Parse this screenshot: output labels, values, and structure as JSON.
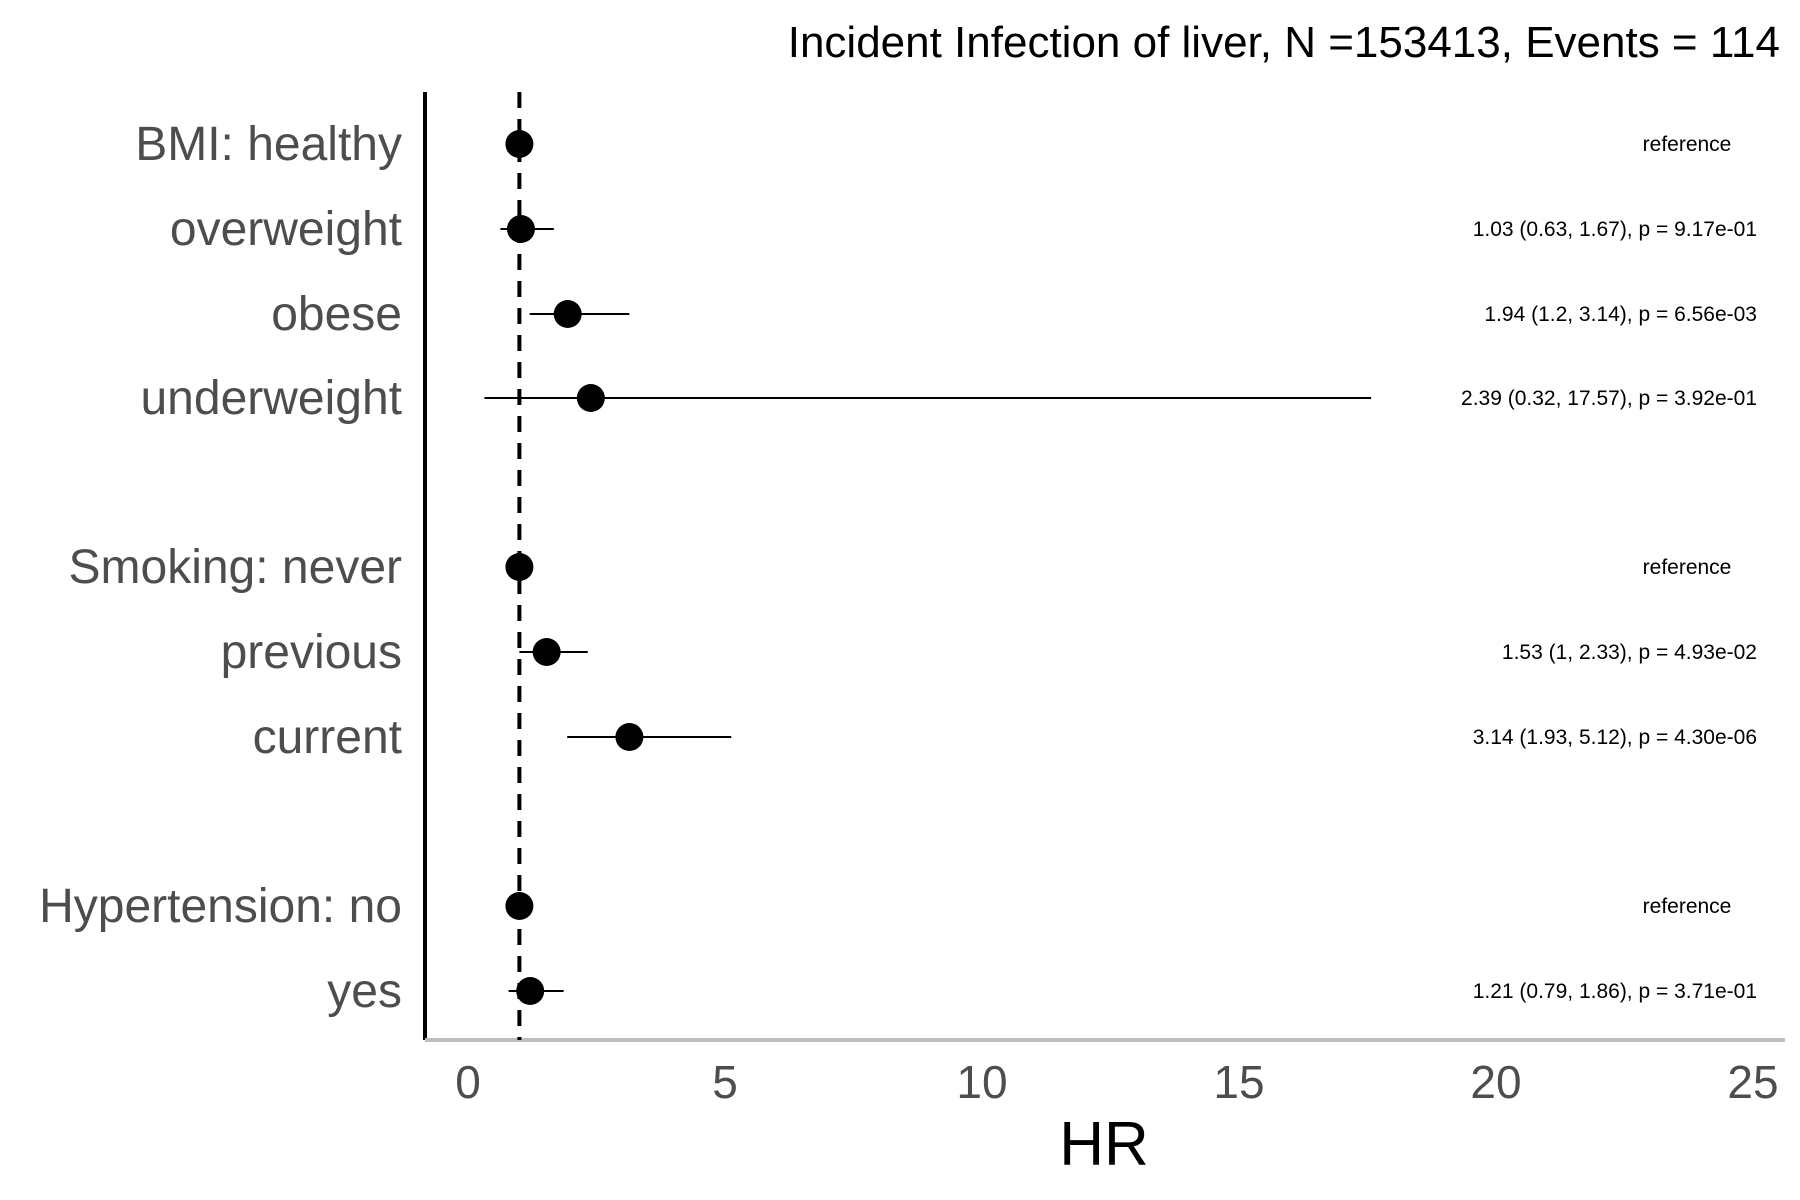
{
  "chart_data": {
    "type": "forest",
    "title": "Incident Infection of liver, N =153413, Events = 114",
    "xlabel": "HR",
    "ylabel": "",
    "xlim": [
      -0.8,
      25.5
    ],
    "x_ticks": [
      0,
      5,
      10,
      15,
      20,
      25
    ],
    "reference_line": 1,
    "grid": false,
    "rows": [
      {
        "label": "BMI: healthy",
        "hr": 1,
        "lower": null,
        "upper": null,
        "annotation": "reference"
      },
      {
        "label": "overweight",
        "hr": 1.03,
        "lower": 0.63,
        "upper": 1.67,
        "annotation": "1.03 (0.63, 1.67), p = 9.17e-01"
      },
      {
        "label": "obese",
        "hr": 1.94,
        "lower": 1.2,
        "upper": 3.14,
        "annotation": "1.94 (1.2, 3.14), p = 6.56e-03"
      },
      {
        "label": "underweight",
        "hr": 2.39,
        "lower": 0.32,
        "upper": 17.57,
        "annotation": "2.39 (0.32, 17.57), p = 3.92e-01"
      },
      {
        "label": "Smoking: never",
        "hr": 1,
        "lower": null,
        "upper": null,
        "annotation": "reference"
      },
      {
        "label": "previous",
        "hr": 1.53,
        "lower": 1,
        "upper": 2.33,
        "annotation": "1.53 (1, 2.33), p = 4.93e-02"
      },
      {
        "label": "current",
        "hr": 3.14,
        "lower": 1.93,
        "upper": 5.12,
        "annotation": "3.14 (1.93, 5.12), p = 4.30e-06"
      },
      {
        "label": "Hypertension: no",
        "hr": 1,
        "lower": null,
        "upper": null,
        "annotation": "reference"
      },
      {
        "label": "yes",
        "hr": 1.21,
        "lower": 0.79,
        "upper": 1.86,
        "annotation": "1.21 (0.79, 1.86), p = 3.71e-01"
      }
    ]
  }
}
